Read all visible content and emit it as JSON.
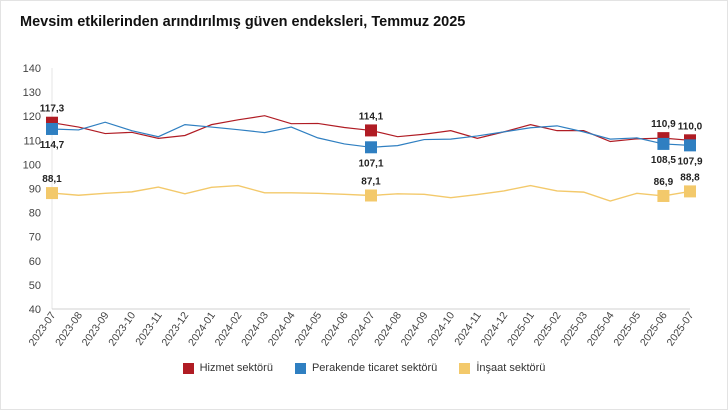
{
  "chart_data": {
    "type": "line",
    "title": "Mevsim etkilerinden arındırılmış güven endeksleri, Temmuz 2025",
    "xlabel": "",
    "ylabel": "",
    "ylim": [
      40,
      140
    ],
    "yticks": [
      40,
      50,
      60,
      70,
      80,
      90,
      100,
      110,
      120,
      130,
      140
    ],
    "grid": false,
    "legend_position": "bottom",
    "categories": [
      "2023-07",
      "2023-08",
      "2023-09",
      "2023-10",
      "2023-11",
      "2023-12",
      "2024-01",
      "2024-02",
      "2024-03",
      "2024-04",
      "2024-05",
      "2024-06",
      "2024-07",
      "2024-08",
      "2024-09",
      "2024-10",
      "2024-11",
      "2024-12",
      "2025-01",
      "2025-02",
      "2025-03",
      "2025-04",
      "2025-05",
      "2025-06",
      "2025-07"
    ],
    "series": [
      {
        "name": "Hizmet sektörü",
        "color": "#b01c24",
        "values": [
          117.3,
          115.5,
          112.8,
          113.3,
          110.8,
          112.0,
          116.5,
          118.5,
          120.2,
          116.9,
          117.0,
          115.3,
          114.1,
          111.5,
          112.5,
          114.0,
          110.8,
          113.5,
          116.5,
          114.0,
          114.0,
          109.5,
          110.6,
          110.9,
          110.0
        ],
        "labels": [
          {
            "index": 0,
            "text": "117,3",
            "pos": "above"
          },
          {
            "index": 12,
            "text": "114,1",
            "pos": "above"
          },
          {
            "index": 23,
            "text": "110,9",
            "pos": "above"
          },
          {
            "index": 24,
            "text": "110,0",
            "pos": "above"
          }
        ]
      },
      {
        "name": "Perakende ticaret sektörü",
        "color": "#2f7fc1",
        "values": [
          114.7,
          114.3,
          117.5,
          114.0,
          111.5,
          116.5,
          115.5,
          114.4,
          113.2,
          115.5,
          111.0,
          108.5,
          107.1,
          107.8,
          110.3,
          110.5,
          111.8,
          113.5,
          115.2,
          116.0,
          113.5,
          110.5,
          111.0,
          108.5,
          107.9
        ],
        "labels": [
          {
            "index": 0,
            "text": "114,7",
            "pos": "below"
          },
          {
            "index": 12,
            "text": "107,1",
            "pos": "below"
          },
          {
            "index": 23,
            "text": "108,5",
            "pos": "below"
          },
          {
            "index": 24,
            "text": "107,9",
            "pos": "below"
          }
        ]
      },
      {
        "name": "İnşaat sektörü",
        "color": "#f3c96b",
        "values": [
          88.1,
          87.2,
          88.0,
          88.6,
          90.6,
          87.8,
          90.5,
          91.2,
          88.2,
          88.2,
          88.0,
          87.6,
          87.1,
          87.8,
          87.6,
          86.2,
          87.5,
          89.0,
          91.2,
          89.0,
          88.5,
          84.8,
          88.0,
          86.9,
          88.8
        ],
        "labels": [
          {
            "index": 0,
            "text": "88,1",
            "pos": "above"
          },
          {
            "index": 12,
            "text": "87,1",
            "pos": "above"
          },
          {
            "index": 23,
            "text": "86,9",
            "pos": "above"
          },
          {
            "index": 24,
            "text": "88,8",
            "pos": "above"
          }
        ]
      }
    ],
    "markers_at": [
      0,
      12,
      23,
      24
    ]
  }
}
